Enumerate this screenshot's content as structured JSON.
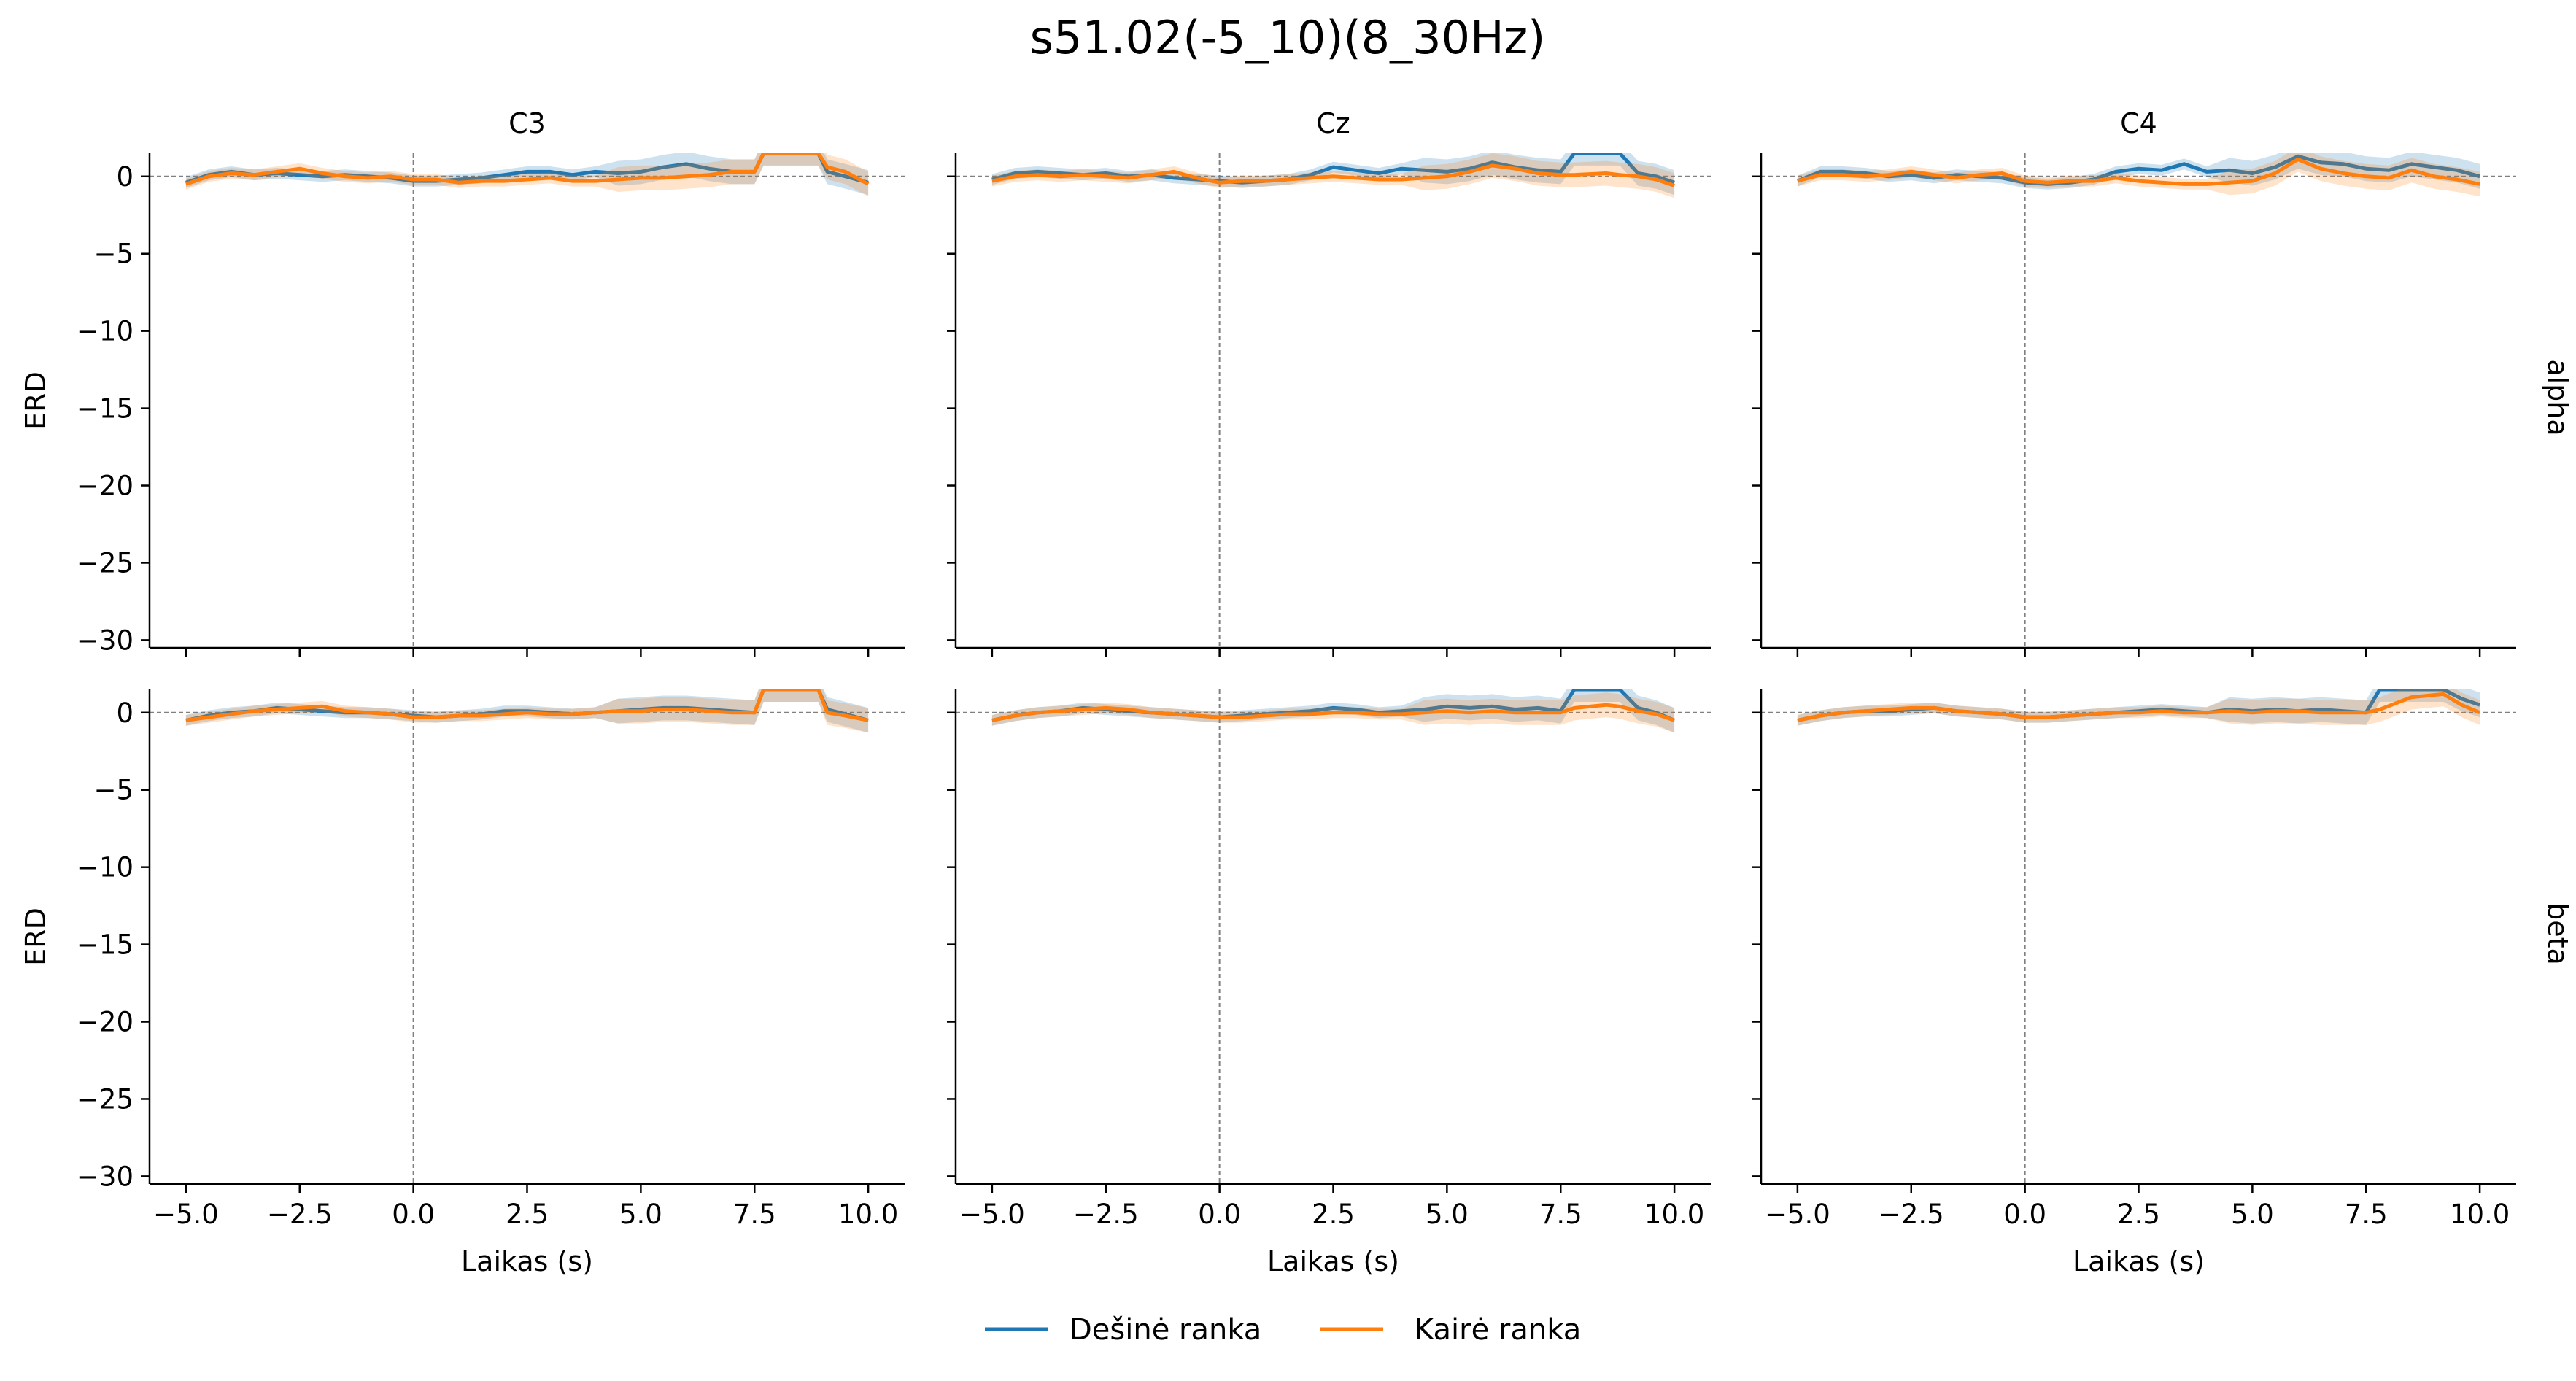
{
  "chart_data": [
    {
      "type": "line",
      "row_label": "alpha",
      "title": "C3",
      "xlabel": "",
      "ylabel": "ERD",
      "xlim": [
        -5.8,
        10.8
      ],
      "ylim": [
        -30.5,
        1.5
      ],
      "series": [
        {
          "name": "Dešinė ranka",
          "x": [
            -5,
            -4.5,
            -4,
            -3.5,
            -3,
            -2.5,
            -2,
            -1.5,
            -1,
            -0.5,
            0,
            0.5,
            1,
            1.5,
            2,
            2.5,
            3,
            3.5,
            4,
            4.5,
            5,
            5.5,
            6,
            6.5,
            7,
            7.5,
            7.7,
            8.1,
            8.9,
            9.1,
            9.5,
            10
          ],
          "y": [
            -0.4,
            0.1,
            0.3,
            0.1,
            0.2,
            0.1,
            0.0,
            0.1,
            0.0,
            -0.1,
            -0.3,
            -0.3,
            -0.2,
            -0.1,
            0.1,
            0.3,
            0.3,
            0.1,
            0.3,
            0.2,
            0.3,
            0.6,
            0.8,
            0.5,
            0.3,
            0.3,
            1.5,
            1.5,
            1.5,
            0.3,
            0.0,
            -0.4
          ]
        },
        {
          "name": "Kairė ranka",
          "x": [
            -5,
            -4.5,
            -4,
            -3.5,
            -3,
            -2.5,
            -2,
            -1.5,
            -1,
            -0.5,
            0,
            0.5,
            1,
            1.5,
            2,
            2.5,
            3,
            3.5,
            4,
            4.5,
            5,
            5.5,
            6,
            6.5,
            7,
            7.5,
            7.7,
            8.1,
            8.9,
            9.1,
            9.5,
            10
          ],
          "y": [
            -0.5,
            0.0,
            0.2,
            0.1,
            0.3,
            0.5,
            0.2,
            0.0,
            -0.1,
            0.0,
            -0.2,
            -0.2,
            -0.4,
            -0.3,
            -0.3,
            -0.2,
            -0.1,
            -0.3,
            -0.3,
            -0.2,
            -0.1,
            -0.1,
            0.0,
            0.1,
            0.3,
            0.3,
            1.5,
            1.5,
            1.5,
            0.6,
            0.3,
            -0.5
          ]
        }
      ]
    },
    {
      "type": "line",
      "row_label": "alpha",
      "title": "Cz",
      "xlabel": "",
      "ylabel": "",
      "xlim": [
        -5.8,
        10.8
      ],
      "ylim": [
        -30.5,
        1.5
      ],
      "series": [
        {
          "name": "Dešinė ranka",
          "x": [
            -5,
            -4.5,
            -4,
            -3.5,
            -3,
            -2.5,
            -2,
            -1.5,
            -1,
            -0.5,
            0,
            0.5,
            1,
            1.5,
            2,
            2.5,
            3,
            3.5,
            4,
            4.5,
            5,
            5.5,
            6,
            6.5,
            7,
            7.5,
            7.8,
            8.5,
            8.8,
            9.2,
            9.6,
            10
          ],
          "y": [
            -0.2,
            0.2,
            0.3,
            0.2,
            0.1,
            0.2,
            0.0,
            0.1,
            -0.1,
            -0.2,
            -0.3,
            -0.4,
            -0.3,
            -0.2,
            0.1,
            0.6,
            0.4,
            0.2,
            0.5,
            0.4,
            0.3,
            0.5,
            0.9,
            0.6,
            0.4,
            0.3,
            1.5,
            1.5,
            1.5,
            0.2,
            0.0,
            -0.4
          ]
        },
        {
          "name": "Kairė ranka",
          "x": [
            -5,
            -4.5,
            -4,
            -3.5,
            -3,
            -2.5,
            -2,
            -1.5,
            -1,
            -0.5,
            0,
            0.5,
            1,
            1.5,
            2,
            2.5,
            3,
            3.5,
            4,
            4.5,
            5,
            5.5,
            6,
            6.5,
            7,
            7.5,
            7.8,
            8.5,
            8.8,
            9.2,
            9.6,
            10
          ],
          "y": [
            -0.3,
            0.0,
            0.1,
            0.0,
            0.1,
            0.0,
            -0.1,
            0.1,
            0.3,
            -0.1,
            -0.4,
            -0.3,
            -0.3,
            -0.2,
            -0.1,
            0.0,
            -0.1,
            -0.2,
            -0.2,
            -0.1,
            0.0,
            0.3,
            0.7,
            0.5,
            0.2,
            0.1,
            0.1,
            0.2,
            0.1,
            0.0,
            -0.2,
            -0.6
          ]
        }
      ]
    },
    {
      "type": "line",
      "row_label": "alpha",
      "title": "C4",
      "xlabel": "",
      "ylabel": "",
      "xlim": [
        -5.8,
        10.8
      ],
      "ylim": [
        -30.5,
        1.5
      ],
      "series": [
        {
          "name": "Dešinė ranka",
          "x": [
            -5,
            -4.5,
            -4,
            -3.5,
            -3,
            -2.5,
            -2,
            -1.5,
            -1,
            -0.5,
            0,
            0.5,
            1,
            1.5,
            2,
            2.5,
            3,
            3.5,
            4,
            4.5,
            5,
            5.5,
            6,
            6.5,
            7,
            7.5,
            8,
            8.5,
            9,
            9.5,
            10
          ],
          "y": [
            -0.3,
            0.3,
            0.3,
            0.2,
            0.0,
            0.1,
            -0.1,
            0.1,
            0.0,
            -0.1,
            -0.4,
            -0.5,
            -0.4,
            -0.2,
            0.3,
            0.5,
            0.4,
            0.8,
            0.3,
            0.4,
            0.2,
            0.6,
            1.3,
            0.9,
            0.8,
            0.5,
            0.4,
            0.8,
            0.6,
            0.4,
            0.0
          ]
        },
        {
          "name": "Kairė ranka",
          "x": [
            -5,
            -4.5,
            -4,
            -3.5,
            -3,
            -2.5,
            -2,
            -1.5,
            -1,
            -0.5,
            0,
            0.5,
            1,
            1.5,
            2,
            2.5,
            3,
            3.5,
            4,
            4.5,
            5,
            5.5,
            6,
            6.5,
            7,
            7.5,
            8,
            8.5,
            9,
            9.5,
            10
          ],
          "y": [
            -0.3,
            0.1,
            0.1,
            0.0,
            0.1,
            0.3,
            0.1,
            -0.1,
            0.1,
            0.2,
            -0.3,
            -0.4,
            -0.3,
            -0.3,
            -0.1,
            -0.3,
            -0.4,
            -0.5,
            -0.5,
            -0.4,
            -0.3,
            0.2,
            1.1,
            0.5,
            0.2,
            0.0,
            -0.1,
            0.4,
            0.0,
            -0.2,
            -0.5
          ]
        }
      ]
    },
    {
      "type": "line",
      "row_label": "beta",
      "title": "",
      "xlabel": "Laikas (s)",
      "ylabel": "ERD",
      "xlim": [
        -5.8,
        10.8
      ],
      "ylim": [
        -30.5,
        1.5
      ],
      "series": [
        {
          "name": "Dešinė ranka",
          "x": [
            -5,
            -4.5,
            -4,
            -3.5,
            -3,
            -2.5,
            -2,
            -1.5,
            -1,
            -0.5,
            0,
            0.5,
            1,
            1.5,
            2,
            2.5,
            3,
            3.5,
            4,
            4.5,
            5,
            5.5,
            6,
            6.5,
            7,
            7.5,
            7.7,
            8.1,
            8.9,
            9.1,
            9.5,
            10
          ],
          "y": [
            -0.5,
            -0.2,
            0.0,
            0.1,
            0.3,
            0.2,
            0.1,
            0.0,
            0.0,
            -0.1,
            -0.2,
            -0.3,
            -0.2,
            -0.1,
            0.1,
            0.1,
            0.0,
            -0.1,
            0.0,
            0.1,
            0.2,
            0.3,
            0.3,
            0.2,
            0.1,
            0.0,
            1.5,
            1.5,
            1.5,
            0.2,
            -0.1,
            -0.5
          ]
        },
        {
          "name": "Kairė ranka",
          "x": [
            -5,
            -4.5,
            -4,
            -3.5,
            -3,
            -2.5,
            -2,
            -1.5,
            -1,
            -0.5,
            0,
            0.5,
            1,
            1.5,
            2,
            2.5,
            3,
            3.5,
            4,
            4.5,
            5,
            5.5,
            6,
            6.5,
            7,
            7.5,
            7.7,
            8.1,
            8.9,
            9.1,
            9.5,
            10
          ],
          "y": [
            -0.5,
            -0.3,
            -0.1,
            0.1,
            0.2,
            0.3,
            0.4,
            0.1,
            0.0,
            -0.1,
            -0.3,
            -0.3,
            -0.2,
            -0.2,
            -0.1,
            0.0,
            -0.1,
            -0.1,
            0.0,
            0.1,
            0.1,
            0.2,
            0.2,
            0.1,
            0.0,
            0.0,
            1.5,
            1.5,
            1.5,
            0.0,
            -0.2,
            -0.5
          ]
        }
      ]
    },
    {
      "type": "line",
      "row_label": "beta",
      "title": "",
      "xlabel": "Laikas (s)",
      "ylabel": "",
      "xlim": [
        -5.8,
        10.8
      ],
      "ylim": [
        -30.5,
        1.5
      ],
      "series": [
        {
          "name": "Dešinė ranka",
          "x": [
            -5,
            -4.5,
            -4,
            -3.5,
            -3,
            -2.5,
            -2,
            -1.5,
            -1,
            -0.5,
            0,
            0.5,
            1,
            1.5,
            2,
            2.5,
            3,
            3.5,
            4,
            4.5,
            5,
            5.5,
            6,
            6.5,
            7,
            7.5,
            7.8,
            8.5,
            8.8,
            9.2,
            9.6,
            10
          ],
          "y": [
            -0.5,
            -0.2,
            0.0,
            0.1,
            0.3,
            0.2,
            0.1,
            0.0,
            -0.1,
            -0.2,
            -0.3,
            -0.2,
            -0.1,
            0.0,
            0.1,
            0.3,
            0.2,
            0.0,
            0.1,
            0.2,
            0.4,
            0.3,
            0.4,
            0.2,
            0.3,
            0.1,
            1.5,
            1.5,
            1.5,
            0.3,
            0.0,
            -0.5
          ]
        },
        {
          "name": "Kairė ranka",
          "x": [
            -5,
            -4.5,
            -4,
            -3.5,
            -3,
            -2.5,
            -2,
            -1.5,
            -1,
            -0.5,
            0,
            0.5,
            1,
            1.5,
            2,
            2.5,
            3,
            3.5,
            4,
            4.5,
            5,
            5.5,
            6,
            6.5,
            7,
            7.5,
            7.8,
            8.5,
            8.8,
            9.2,
            9.6,
            10
          ],
          "y": [
            -0.5,
            -0.2,
            0.0,
            0.1,
            0.2,
            0.3,
            0.2,
            0.0,
            -0.1,
            -0.2,
            -0.3,
            -0.3,
            -0.2,
            -0.1,
            -0.1,
            0.0,
            0.0,
            -0.1,
            -0.1,
            0.0,
            0.1,
            0.0,
            0.1,
            0.0,
            0.0,
            0.0,
            0.3,
            0.5,
            0.4,
            0.1,
            -0.1,
            -0.5
          ]
        }
      ]
    },
    {
      "type": "line",
      "row_label": "beta",
      "title": "",
      "xlabel": "Laikas (s)",
      "ylabel": "",
      "xlim": [
        -5.8,
        10.8
      ],
      "ylim": [
        -30.5,
        1.5
      ],
      "series": [
        {
          "name": "Dešinė ranka",
          "x": [
            -5,
            -4.5,
            -4,
            -3.5,
            -3,
            -2.5,
            -2,
            -1.5,
            -1,
            -0.5,
            0,
            0.5,
            1,
            1.5,
            2,
            2.5,
            3,
            3.5,
            4,
            4.5,
            5,
            5.5,
            6,
            6.5,
            7,
            7.5,
            7.8,
            8.5,
            9.2,
            9.6,
            10
          ],
          "y": [
            -0.5,
            -0.2,
            0.0,
            0.1,
            0.1,
            0.2,
            0.3,
            0.1,
            0.0,
            -0.1,
            -0.3,
            -0.3,
            -0.2,
            -0.1,
            0.0,
            0.1,
            0.2,
            0.1,
            0.0,
            0.2,
            0.1,
            0.2,
            0.1,
            0.2,
            0.1,
            0.0,
            1.5,
            1.5,
            1.5,
            0.9,
            0.5
          ]
        },
        {
          "name": "Kairė ranka",
          "x": [
            -5,
            -4.5,
            -4,
            -3.5,
            -3,
            -2.5,
            -2,
            -1.5,
            -1,
            -0.5,
            0,
            0.5,
            1,
            1.5,
            2,
            2.5,
            3,
            3.5,
            4,
            4.5,
            5,
            5.5,
            6,
            6.5,
            7,
            7.5,
            7.8,
            8.5,
            9.2,
            9.6,
            10
          ],
          "y": [
            -0.5,
            -0.2,
            0.0,
            0.1,
            0.2,
            0.3,
            0.3,
            0.1,
            0.0,
            -0.1,
            -0.3,
            -0.3,
            -0.2,
            -0.1,
            0.0,
            0.0,
            0.1,
            0.0,
            0.0,
            0.1,
            0.0,
            0.1,
            0.1,
            0.0,
            0.0,
            0.0,
            0.2,
            1.0,
            1.2,
            0.5,
            0.0
          ]
        }
      ]
    }
  ],
  "figure": {
    "title": "s51.02(-5_10)(8_30Hz)",
    "yticks": [
      0,
      -5,
      -10,
      -15,
      -20,
      -25,
      -30
    ],
    "xticks": [
      -5,
      -2.5,
      0,
      2.5,
      5,
      7.5,
      10
    ],
    "xtick_labels": [
      "−5.0",
      "−2.5",
      "0.0",
      "2.5",
      "5.0",
      "7.5",
      "10.0"
    ],
    "ytick_labels": [
      "0",
      "−5",
      "−10",
      "−15",
      "−20",
      "−25",
      "−30"
    ],
    "event_line_x": 0,
    "baseline_y": 0
  },
  "legend": {
    "placement": "bottom-center",
    "entries": [
      {
        "label": "Dešinė ranka",
        "color": "#1f77b4"
      },
      {
        "label": "Kairė ranka",
        "color": "#ff7f0e"
      }
    ]
  },
  "colors": {
    "right_hand": "#1f77b4",
    "left_hand": "#ff7f0e",
    "reference_line": "#808080"
  }
}
